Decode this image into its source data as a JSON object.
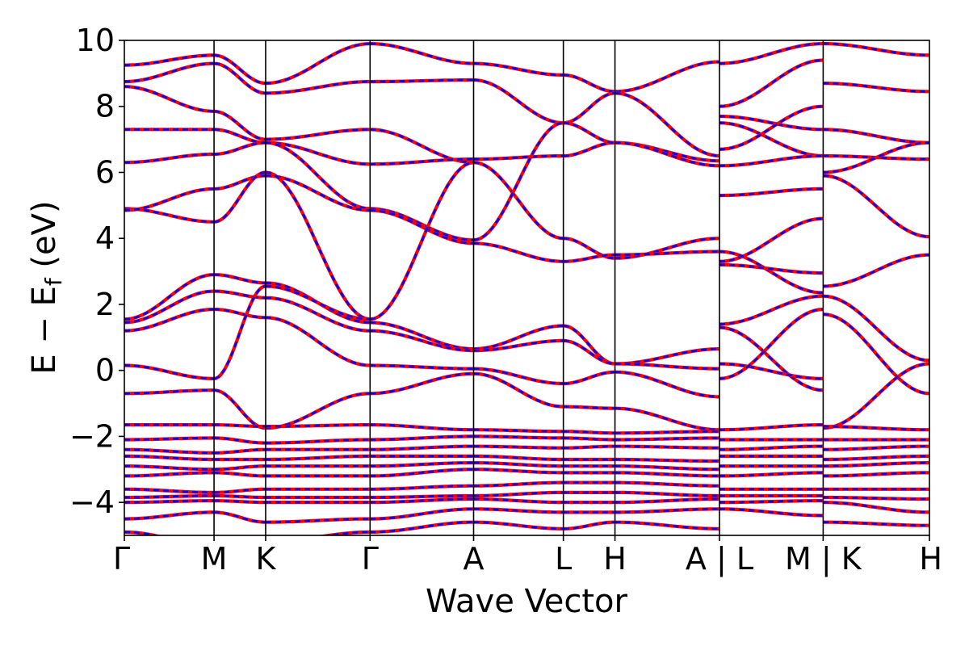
{
  "chart_data": {
    "type": "line",
    "title": "",
    "xlabel": "Wave Vector",
    "ylabel_parts": {
      "prefix": "E − E",
      "subscript": "f",
      "suffix": " (eV)"
    },
    "ylim": [
      -5,
      10
    ],
    "yticks": [
      -4,
      -2,
      0,
      2,
      4,
      6,
      8,
      10
    ],
    "ytick_labels": [
      "−4",
      "−2",
      "0",
      "2",
      "4",
      "6",
      "8",
      "10"
    ],
    "xlim": [
      0,
      1
    ],
    "kpath": [
      {
        "label": "Γ",
        "x": 0.0
      },
      {
        "label": "M",
        "x": 0.1114
      },
      {
        "label": "K",
        "x": 0.1755
      },
      {
        "label": "Γ",
        "x": 0.3052
      },
      {
        "label": "A",
        "x": 0.4338
      },
      {
        "label": "L",
        "x": 0.5453
      },
      {
        "label": "H",
        "x": 0.6094
      },
      {
        "label": "A | L",
        "x": 0.7392
      },
      {
        "label": "M | K",
        "x": 0.868
      },
      {
        "label": "H",
        "x": 1.0
      }
    ],
    "series_styles": [
      {
        "color": "#ff0000",
        "style": "solid"
      },
      {
        "color": "#0000ff",
        "style": "dashed"
      }
    ],
    "segments": [
      {
        "range": [
          0.0,
          0.1114
        ],
        "bands": [
          [
            9.25,
            9.55
          ],
          [
            8.75,
            9.3
          ],
          [
            8.6,
            7.85
          ],
          [
            7.3,
            7.3
          ],
          [
            6.3,
            6.55
          ],
          [
            4.9,
            4.5
          ],
          [
            4.85,
            5.5
          ],
          [
            1.55,
            2.9
          ],
          [
            1.45,
            2.4
          ],
          [
            1.2,
            1.85
          ],
          [
            0.15,
            -0.25
          ],
          [
            -0.7,
            -0.6
          ],
          [
            -1.65,
            -1.65
          ],
          [
            -2.1,
            -2.05
          ],
          [
            -2.4,
            -2.5
          ],
          [
            -2.6,
            -2.7
          ],
          [
            -2.9,
            -3.0
          ],
          [
            -3.2,
            -3.1
          ],
          [
            -3.6,
            -3.7
          ],
          [
            -3.85,
            -3.8
          ],
          [
            -4.0,
            -3.95
          ],
          [
            -4.5,
            -4.3
          ],
          [
            -4.9,
            -5.3
          ]
        ]
      },
      {
        "range": [
          0.1114,
          0.1755
        ],
        "bands": [
          [
            9.55,
            8.7
          ],
          [
            9.3,
            8.4
          ],
          [
            7.85,
            7.0
          ],
          [
            7.3,
            6.9
          ],
          [
            6.55,
            6.9
          ],
          [
            5.5,
            5.9
          ],
          [
            4.5,
            6.0
          ],
          [
            2.9,
            2.65
          ],
          [
            2.4,
            2.2
          ],
          [
            1.85,
            1.6
          ],
          [
            -0.25,
            2.55
          ],
          [
            -0.6,
            -1.75
          ],
          [
            -1.65,
            -1.7
          ],
          [
            -2.05,
            -2.2
          ],
          [
            -2.5,
            -2.4
          ],
          [
            -2.7,
            -2.7
          ],
          [
            -3.0,
            -2.9
          ],
          [
            -3.1,
            -3.2
          ],
          [
            -3.7,
            -3.6
          ],
          [
            -3.8,
            -3.85
          ],
          [
            -3.95,
            -4.0
          ],
          [
            -4.3,
            -4.6
          ],
          [
            -5.3,
            -5.2
          ]
        ]
      },
      {
        "range": [
          0.1755,
          0.3052
        ],
        "bands": [
          [
            8.7,
            9.9
          ],
          [
            8.4,
            8.75
          ],
          [
            7.0,
            7.3
          ],
          [
            6.9,
            6.25
          ],
          [
            6.9,
            4.9
          ],
          [
            5.9,
            4.85
          ],
          [
            6.0,
            1.55
          ],
          [
            2.65,
            1.45
          ],
          [
            2.2,
            1.2
          ],
          [
            1.6,
            0.15
          ],
          [
            2.55,
            1.55
          ],
          [
            -1.75,
            -0.7
          ],
          [
            -1.7,
            -1.65
          ],
          [
            -2.2,
            -2.1
          ],
          [
            -2.4,
            -2.4
          ],
          [
            -2.7,
            -2.6
          ],
          [
            -2.9,
            -2.9
          ],
          [
            -3.2,
            -3.2
          ],
          [
            -3.6,
            -3.6
          ],
          [
            -3.85,
            -3.85
          ],
          [
            -4.0,
            -4.0
          ],
          [
            -4.6,
            -4.5
          ],
          [
            -5.2,
            -4.9
          ]
        ]
      },
      {
        "range": [
          0.3052,
          0.4338
        ],
        "bands": [
          [
            9.9,
            9.3
          ],
          [
            8.75,
            8.8
          ],
          [
            7.3,
            6.3
          ],
          [
            6.25,
            6.4
          ],
          [
            4.9,
            3.95
          ],
          [
            4.85,
            3.85
          ],
          [
            1.55,
            6.3
          ],
          [
            1.45,
            0.65
          ],
          [
            1.2,
            0.6
          ],
          [
            0.15,
            0.05
          ],
          [
            -0.7,
            -0.1
          ],
          [
            -1.65,
            -1.8
          ],
          [
            -2.1,
            -2.0
          ],
          [
            -2.4,
            -2.3
          ],
          [
            -2.6,
            -2.6
          ],
          [
            -2.9,
            -2.8
          ],
          [
            -3.2,
            -3.0
          ],
          [
            -3.6,
            -3.5
          ],
          [
            -3.85,
            -3.8
          ],
          [
            -4.0,
            -3.9
          ],
          [
            -4.5,
            -4.2
          ],
          [
            -4.9,
            -4.6
          ]
        ]
      },
      {
        "range": [
          0.4338,
          0.5453
        ],
        "bands": [
          [
            9.3,
            8.95
          ],
          [
            8.8,
            7.5
          ],
          [
            6.4,
            6.5
          ],
          [
            6.3,
            4.0
          ],
          [
            3.95,
            7.5
          ],
          [
            3.85,
            3.3
          ],
          [
            0.65,
            1.35
          ],
          [
            0.6,
            0.9
          ],
          [
            0.05,
            -0.4
          ],
          [
            -0.1,
            -1.1
          ],
          [
            -1.8,
            -1.85
          ],
          [
            -2.0,
            -2.05
          ],
          [
            -2.3,
            -2.35
          ],
          [
            -2.6,
            -2.7
          ],
          [
            -2.8,
            -2.9
          ],
          [
            -3.0,
            -3.1
          ],
          [
            -3.5,
            -3.4
          ],
          [
            -3.8,
            -3.7
          ],
          [
            -3.9,
            -4.0
          ],
          [
            -4.2,
            -4.3
          ],
          [
            -4.6,
            -4.8
          ]
        ]
      },
      {
        "range": [
          0.5453,
          0.6094
        ],
        "bands": [
          [
            8.95,
            8.45
          ],
          [
            7.5,
            8.4
          ],
          [
            6.5,
            6.9
          ],
          [
            7.5,
            6.9
          ],
          [
            4.0,
            3.4
          ],
          [
            3.3,
            3.5
          ],
          [
            1.35,
            0.2
          ],
          [
            0.9,
            0.2
          ],
          [
            -0.4,
            -0.05
          ],
          [
            -1.1,
            -1.15
          ],
          [
            -1.85,
            -1.9
          ],
          [
            -2.05,
            -2.1
          ],
          [
            -2.35,
            -2.3
          ],
          [
            -2.7,
            -2.7
          ],
          [
            -2.9,
            -2.9
          ],
          [
            -3.1,
            -3.1
          ],
          [
            -3.4,
            -3.4
          ],
          [
            -3.7,
            -3.7
          ],
          [
            -4.0,
            -4.0
          ],
          [
            -4.3,
            -4.3
          ],
          [
            -4.8,
            -4.6
          ]
        ]
      },
      {
        "range": [
          0.6094,
          0.7392
        ],
        "bands": [
          [
            8.45,
            9.35
          ],
          [
            8.4,
            6.5
          ],
          [
            6.9,
            6.35
          ],
          [
            6.9,
            6.2
          ],
          [
            3.4,
            4.0
          ],
          [
            3.5,
            3.6
          ],
          [
            0.2,
            0.65
          ],
          [
            0.2,
            0.05
          ],
          [
            -0.05,
            -0.8
          ],
          [
            -1.15,
            -1.8
          ],
          [
            -1.9,
            -1.85
          ],
          [
            -2.1,
            -2.05
          ],
          [
            -2.3,
            -2.35
          ],
          [
            -2.7,
            -2.75
          ],
          [
            -2.9,
            -3.0
          ],
          [
            -3.1,
            -3.2
          ],
          [
            -3.4,
            -3.5
          ],
          [
            -3.7,
            -3.8
          ],
          [
            -4.0,
            -3.9
          ],
          [
            -4.3,
            -4.2
          ],
          [
            -4.6,
            -4.8
          ]
        ]
      },
      {
        "range": [
          0.7392,
          0.868
        ],
        "bands": [
          [
            9.3,
            9.9
          ],
          [
            8.0,
            9.4
          ],
          [
            7.7,
            7.3
          ],
          [
            7.5,
            6.5
          ],
          [
            6.7,
            8.0
          ],
          [
            6.2,
            6.5
          ],
          [
            5.3,
            5.5
          ],
          [
            3.3,
            4.6
          ],
          [
            3.6,
            2.35
          ],
          [
            3.2,
            2.95
          ],
          [
            1.4,
            2.25
          ],
          [
            1.3,
            -0.6
          ],
          [
            0.2,
            -0.25
          ],
          [
            -0.25,
            1.85
          ],
          [
            -1.8,
            -1.65
          ],
          [
            -2.1,
            -2.1
          ],
          [
            -2.4,
            -2.3
          ],
          [
            -2.6,
            -2.6
          ],
          [
            -2.9,
            -2.9
          ],
          [
            -3.2,
            -3.1
          ],
          [
            -3.6,
            -3.6
          ],
          [
            -3.8,
            -3.8
          ],
          [
            -4.0,
            -3.95
          ],
          [
            -4.2,
            -4.4
          ]
        ]
      },
      {
        "range": [
          0.868,
          1.0
        ],
        "bands": [
          [
            9.9,
            9.55
          ],
          [
            8.7,
            8.45
          ],
          [
            7.3,
            6.9
          ],
          [
            6.5,
            6.4
          ],
          [
            6.0,
            6.9
          ],
          [
            5.9,
            4.05
          ],
          [
            2.55,
            3.5
          ],
          [
            2.25,
            0.3
          ],
          [
            1.7,
            -0.7
          ],
          [
            -1.75,
            0.2
          ],
          [
            -1.7,
            -1.8
          ],
          [
            -2.1,
            -2.1
          ],
          [
            -2.4,
            -2.3
          ],
          [
            -2.7,
            -2.6
          ],
          [
            -2.9,
            -2.8
          ],
          [
            -3.2,
            -3.1
          ],
          [
            -3.6,
            -3.6
          ],
          [
            -3.85,
            -3.9
          ],
          [
            -4.0,
            -4.3
          ],
          [
            -4.6,
            -4.7
          ]
        ]
      }
    ]
  }
}
